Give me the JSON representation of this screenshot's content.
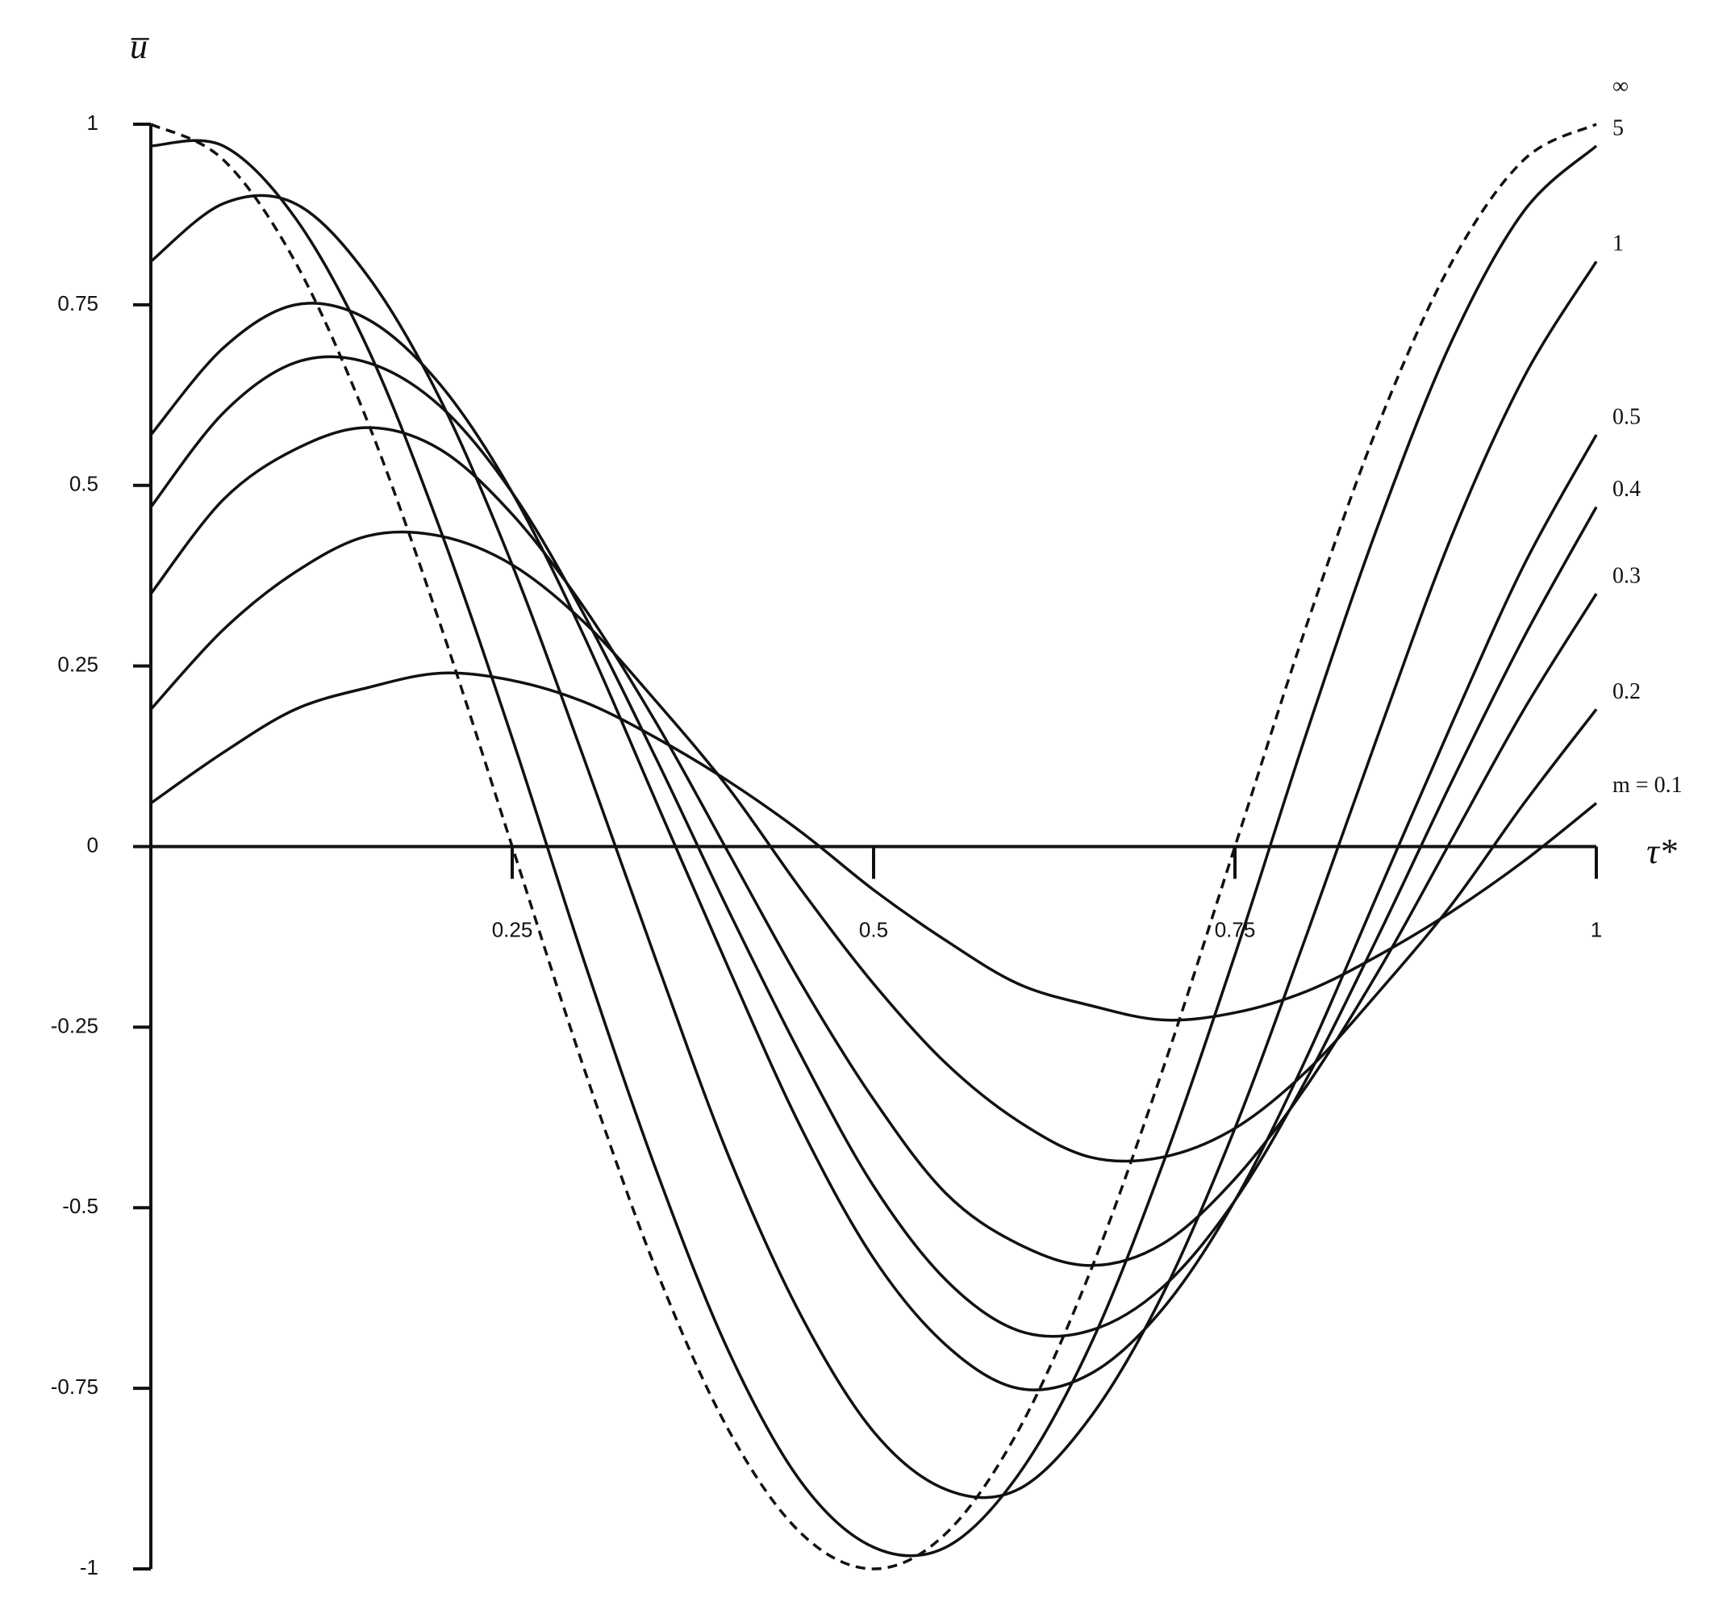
{
  "chart_data": {
    "type": "line",
    "y_label": "u̅",
    "x_label": "τ*",
    "x": [
      0,
      0.05,
      0.1,
      0.15,
      0.2,
      0.25,
      0.3,
      0.35,
      0.4,
      0.45,
      0.5,
      0.55,
      0.6,
      0.65,
      0.7,
      0.75,
      0.8,
      0.85,
      0.9,
      0.95,
      1
    ],
    "xlim": [
      0,
      1
    ],
    "xticks": [
      0.25,
      0.5,
      0.75,
      1
    ],
    "ylim": [
      -1,
      1
    ],
    "yticks": [
      1,
      0.75,
      0.5,
      0.25,
      0,
      -0.25,
      -0.5,
      -0.75,
      -1
    ],
    "series": [
      {
        "name": "∞",
        "color": "#111111",
        "dashed": true,
        "values": [
          1,
          0.951,
          0.809,
          0.588,
          0.309,
          0,
          -0.309,
          -0.588,
          -0.809,
          -0.951,
          -1,
          -0.951,
          -0.809,
          -0.588,
          -0.309,
          0,
          0.309,
          0.588,
          0.809,
          0.951,
          1
        ]
      },
      {
        "name": "5",
        "color": "#111111",
        "values": [
          0.97,
          0.97,
          0.87,
          0.69,
          0.44,
          0.15,
          -0.16,
          -0.45,
          -0.7,
          -0.88,
          -0.97,
          -0.97,
          -0.87,
          -0.69,
          -0.44,
          -0.15,
          0.16,
          0.45,
          0.7,
          0.88,
          0.97
        ]
      },
      {
        "name": "1",
        "color": "#111111",
        "values": [
          0.81,
          0.89,
          0.89,
          0.79,
          0.62,
          0.39,
          0.12,
          -0.16,
          -0.43,
          -0.65,
          -0.81,
          -0.89,
          -0.89,
          -0.79,
          -0.62,
          -0.39,
          -0.12,
          0.16,
          0.43,
          0.65,
          0.81
        ]
      },
      {
        "name": "0.5",
        "color": "#111111",
        "values": [
          0.57,
          0.69,
          0.75,
          0.73,
          0.64,
          0.49,
          0.29,
          0.06,
          -0.17,
          -0.39,
          -0.57,
          -0.69,
          -0.75,
          -0.73,
          -0.64,
          -0.49,
          -0.29,
          -0.06,
          0.17,
          0.39,
          0.57
        ]
      },
      {
        "name": "0.4",
        "color": "#111111",
        "values": [
          0.47,
          0.6,
          0.67,
          0.67,
          0.61,
          0.49,
          0.32,
          0.12,
          -0.09,
          -0.29,
          -0.47,
          -0.6,
          -0.67,
          -0.67,
          -0.61,
          -0.49,
          -0.32,
          -0.12,
          0.09,
          0.29,
          0.47
        ]
      },
      {
        "name": "0.3",
        "color": "#111111",
        "values": [
          0.35,
          0.48,
          0.55,
          0.58,
          0.55,
          0.46,
          0.33,
          0.17,
          -0.01,
          -0.19,
          -0.35,
          -0.48,
          -0.55,
          -0.58,
          -0.55,
          -0.46,
          -0.33,
          -0.17,
          0.01,
          0.19,
          0.35
        ]
      },
      {
        "name": "0.2",
        "color": "#111111",
        "values": [
          0.19,
          0.3,
          0.38,
          0.43,
          0.43,
          0.39,
          0.31,
          0.2,
          0.08,
          -0.06,
          -0.19,
          -0.3,
          -0.38,
          -0.43,
          -0.43,
          -0.39,
          -0.31,
          -0.2,
          -0.08,
          0.06,
          0.19
        ]
      },
      {
        "name": "m = 0.1",
        "color": "#111111",
        "values": [
          0.06,
          0.13,
          0.19,
          0.22,
          0.24,
          0.23,
          0.2,
          0.15,
          0.09,
          0.02,
          -0.06,
          -0.13,
          -0.19,
          -0.22,
          -0.24,
          -0.23,
          -0.2,
          -0.15,
          -0.09,
          -0.02,
          0.06
        ]
      }
    ]
  }
}
